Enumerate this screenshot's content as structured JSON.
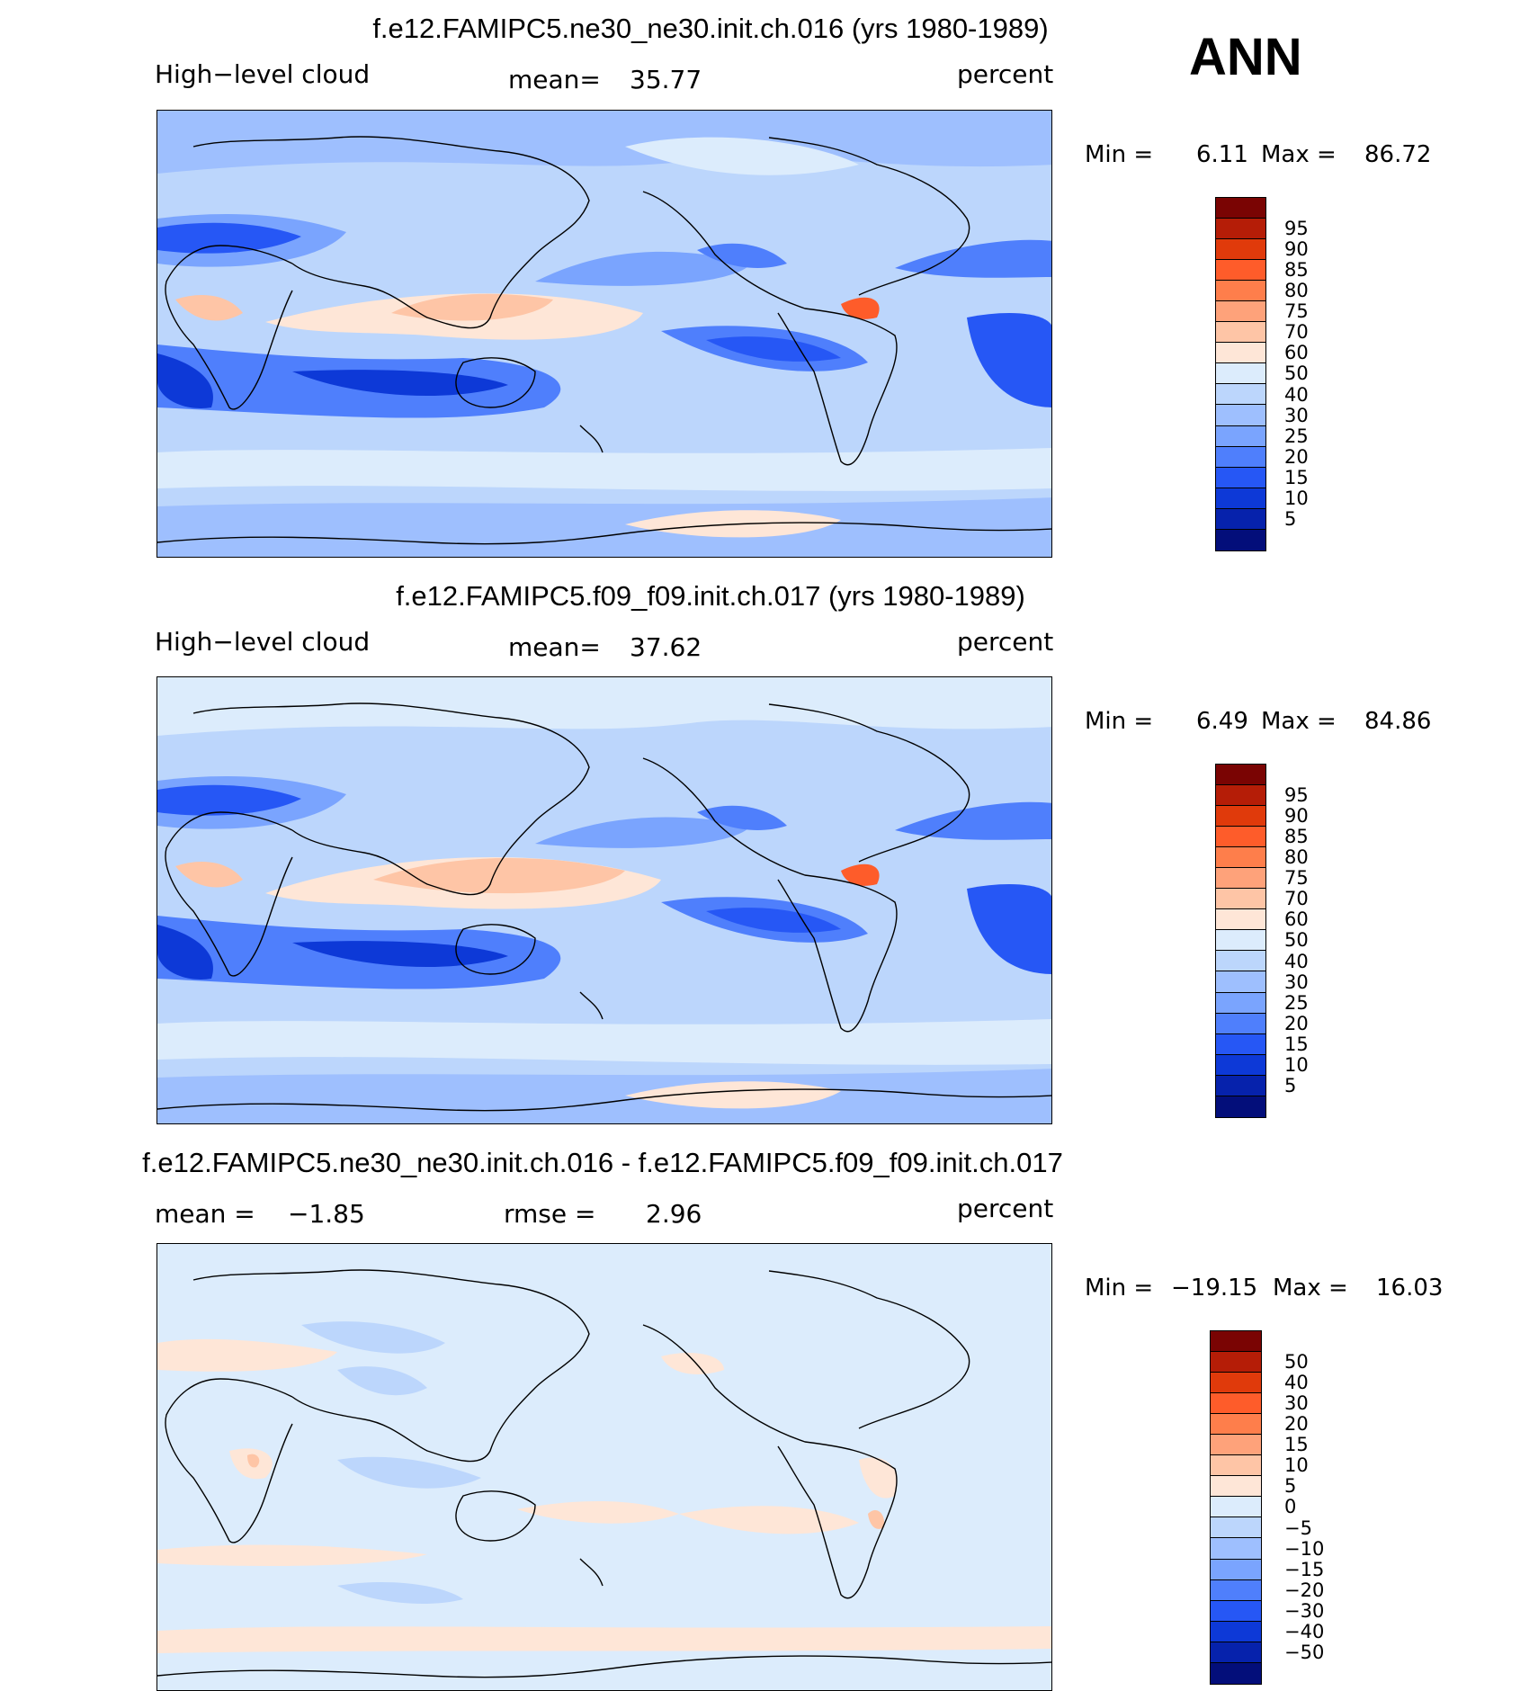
{
  "season": "ANN",
  "panels": [
    {
      "title": "f.e12.FAMIPC5.ne30_ne30.init.ch.016 (yrs 1980-1989)",
      "left_label": "High−level cloud",
      "mean_label": "mean=",
      "mean_value": "35.77",
      "units": "percent",
      "min_label": "Min =",
      "min_value": "6.11",
      "max_label": "Max =",
      "max_value": "86.72",
      "colorbar": {
        "colors": [
          "#7a0403",
          "#b51d07",
          "#e03a0b",
          "#fe5c2a",
          "#fe7e4b",
          "#fea27a",
          "#fec5a6",
          "#fee6d7",
          "#dcecfc",
          "#bcd6fc",
          "#9ebffe",
          "#7aa4fe",
          "#4f7ffc",
          "#2657f5",
          "#0d39d7",
          "#0622ac",
          "#030e7a"
        ],
        "labels": [
          "95",
          "90",
          "85",
          "80",
          "75",
          "70",
          "60",
          "50",
          "40",
          "30",
          "25",
          "20",
          "15",
          "10",
          "5"
        ]
      }
    },
    {
      "title": "f.e12.FAMIPC5.f09_f09.init.ch.017 (yrs 1980-1989)",
      "left_label": "High−level cloud",
      "mean_label": "mean=",
      "mean_value": "37.62",
      "units": "percent",
      "min_label": "Min =",
      "min_value": "6.49",
      "max_label": "Max =",
      "max_value": "84.86",
      "colorbar": {
        "colors": [
          "#7a0403",
          "#b51d07",
          "#e03a0b",
          "#fe5c2a",
          "#fe7e4b",
          "#fea27a",
          "#fec5a6",
          "#fee6d7",
          "#dcecfc",
          "#bcd6fc",
          "#9ebffe",
          "#7aa4fe",
          "#4f7ffc",
          "#2657f5",
          "#0d39d7",
          "#0622ac",
          "#030e7a"
        ],
        "labels": [
          "95",
          "90",
          "85",
          "80",
          "75",
          "70",
          "60",
          "50",
          "40",
          "30",
          "25",
          "20",
          "15",
          "10",
          "5"
        ]
      }
    },
    {
      "title": "f.e12.FAMIPC5.ne30_ne30.init.ch.016 - f.e12.FAMIPC5.f09_f09.init.ch.017",
      "left_label": "mean =",
      "mean_value": "−1.85",
      "rmse_label": "rmse =",
      "rmse_value": "2.96",
      "units": "percent",
      "min_label": "Min =",
      "min_value": "−19.15",
      "max_label": "Max =",
      "max_value": "16.03",
      "colorbar": {
        "colors": [
          "#7a0403",
          "#b51d07",
          "#e03a0b",
          "#fe5c2a",
          "#fe7e4b",
          "#fea27a",
          "#fec5a6",
          "#fee6d7",
          "#dcecfc",
          "#bcd6fc",
          "#9ebffe",
          "#7aa4fe",
          "#4f7ffc",
          "#2657f5",
          "#0d39d7",
          "#0622ac",
          "#030e7a"
        ],
        "labels": [
          "50",
          "40",
          "30",
          "20",
          "15",
          "10",
          "5",
          "0",
          "−5",
          "−10",
          "−15",
          "−20",
          "−30",
          "−40",
          "−50"
        ]
      }
    }
  ]
}
